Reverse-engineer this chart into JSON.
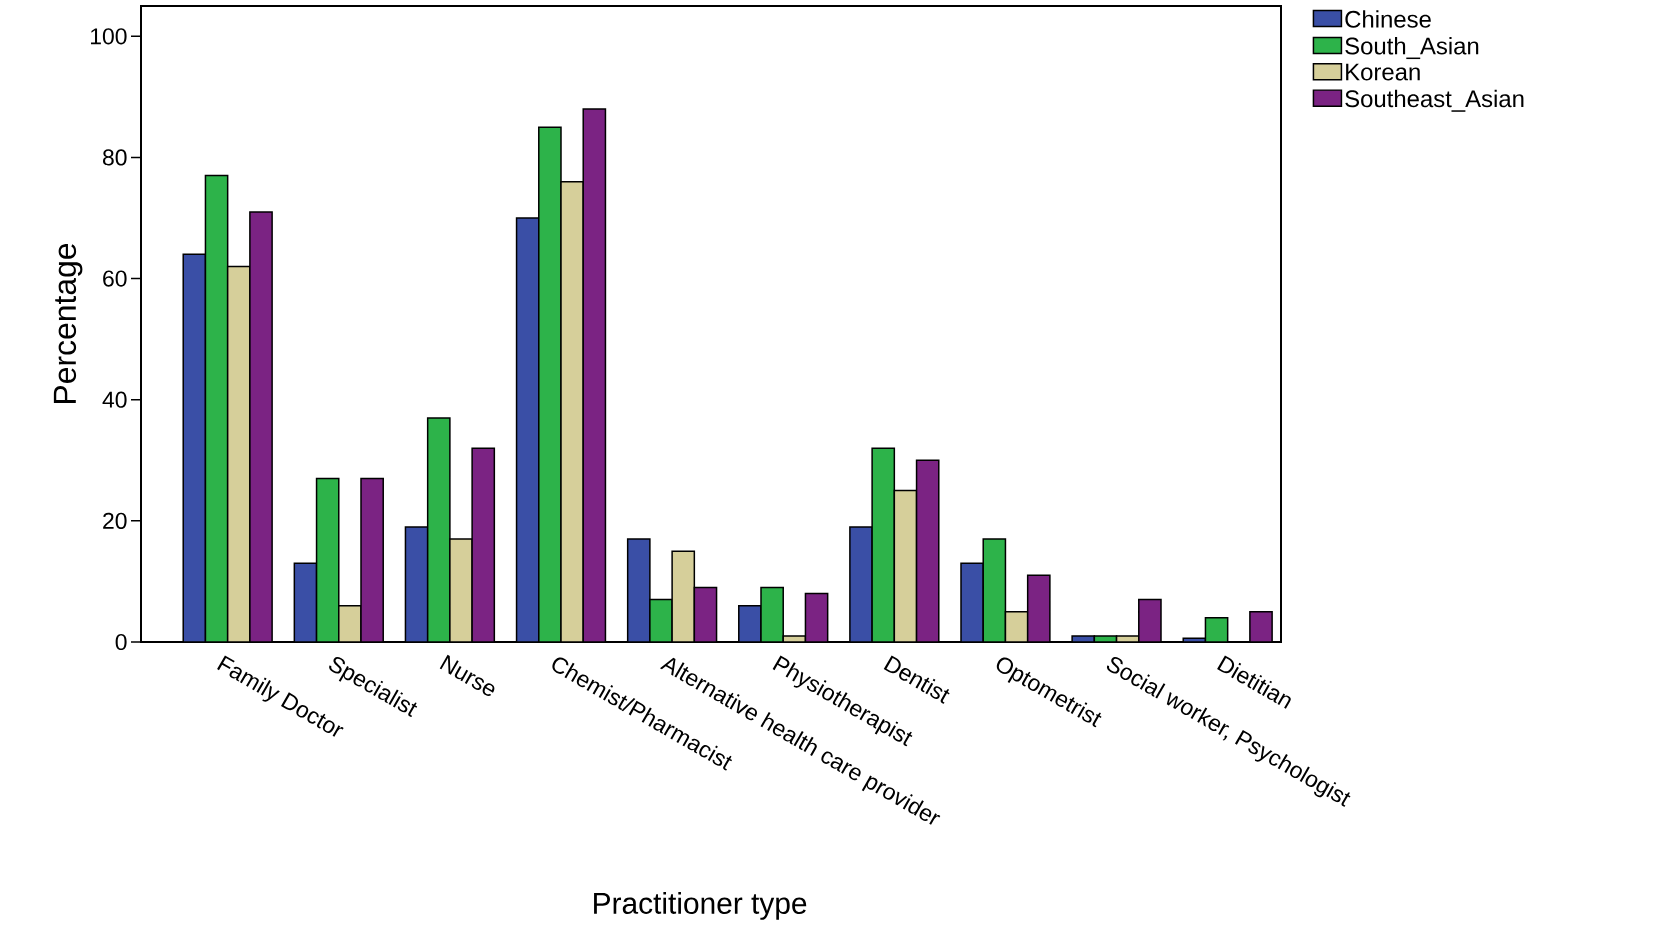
{
  "chart_data": {
    "type": "bar",
    "xlabel": "Practitioner type",
    "ylabel": "Percentage",
    "categories": [
      "Family Doctor",
      "Specialist",
      "Nurse",
      "Chemist/Pharmacist",
      "Alternative health care provider",
      "Physiotherapist",
      "Dentist",
      "Optometrist",
      "Social worker, Psychologist",
      "Dietitian"
    ],
    "series": [
      {
        "name": "Chinese",
        "color": "#3a4fa6",
        "values": [
          64,
          13,
          19,
          70,
          17,
          6,
          19,
          13,
          1,
          0.6
        ]
      },
      {
        "name": "South_Asian",
        "color": "#2db34a",
        "values": [
          77,
          27,
          37,
          85,
          7,
          9,
          32,
          17,
          1,
          4
        ]
      },
      {
        "name": "Korean",
        "color": "#d6cf9a",
        "values": [
          62,
          6,
          17,
          76,
          15,
          1,
          25,
          5,
          1,
          0
        ]
      },
      {
        "name": "Southeast_Asian",
        "color": "#7b2383",
        "values": [
          71,
          27,
          32,
          88,
          9,
          8,
          30,
          11,
          7,
          5
        ]
      }
    ],
    "ylim": [
      0,
      105
    ],
    "yticks": [
      0,
      20,
      40,
      60,
      80,
      100
    ],
    "legend": "top right"
  }
}
